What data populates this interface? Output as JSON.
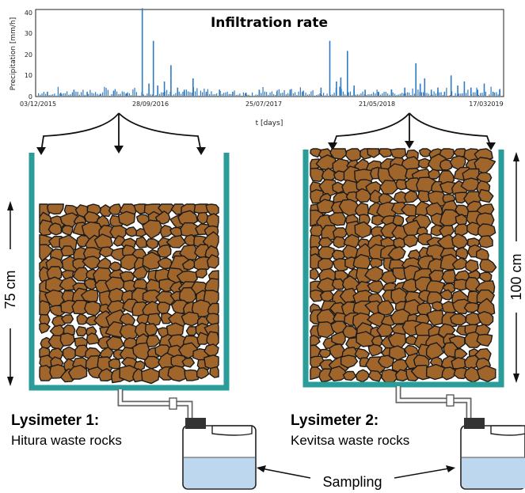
{
  "chart_data": {
    "type": "bar",
    "title": "Infiltration rate",
    "ylabel": "Precipitation [mm/h]",
    "xlabel": "t [days]",
    "ylim": [
      0,
      42
    ],
    "yticks": [
      "0",
      "10",
      "20",
      "30",
      "40"
    ],
    "xticks": [
      "03/12/2015",
      "28/09/2016",
      "25/07/2017",
      "21/05/2018",
      "17/032019"
    ],
    "color": "#2e7bc4",
    "series": [
      {
        "values": [
          [
            0.02,
            2
          ],
          [
            0.05,
            1.5
          ],
          [
            0.08,
            3
          ],
          [
            0.11,
            2
          ],
          [
            0.14,
            1
          ],
          [
            0.17,
            2.5
          ],
          [
            0.2,
            1.2
          ],
          [
            0.235,
            43
          ],
          [
            0.25,
            6
          ],
          [
            0.26,
            27
          ],
          [
            0.27,
            5
          ],
          [
            0.285,
            7
          ],
          [
            0.3,
            15
          ],
          [
            0.315,
            4
          ],
          [
            0.33,
            3
          ],
          [
            0.35,
            8.5
          ],
          [
            0.38,
            2
          ],
          [
            0.41,
            3
          ],
          [
            0.44,
            2
          ],
          [
            0.47,
            1.5
          ],
          [
            0.5,
            3
          ],
          [
            0.54,
            2
          ],
          [
            0.57,
            3
          ],
          [
            0.6,
            2.5
          ],
          [
            0.64,
            4
          ],
          [
            0.66,
            27
          ],
          [
            0.675,
            7
          ],
          [
            0.685,
            9
          ],
          [
            0.7,
            22
          ],
          [
            0.715,
            5
          ],
          [
            0.74,
            3
          ],
          [
            0.77,
            2
          ],
          [
            0.8,
            3
          ],
          [
            0.83,
            4
          ],
          [
            0.855,
            16
          ],
          [
            0.865,
            6
          ],
          [
            0.875,
            8.5
          ],
          [
            0.89,
            3
          ],
          [
            0.905,
            4
          ],
          [
            0.92,
            2
          ],
          [
            0.935,
            10
          ],
          [
            0.95,
            5
          ],
          [
            0.965,
            7
          ],
          [
            0.98,
            4
          ],
          [
            0.995,
            3
          ],
          [
            1.01,
            6
          ],
          [
            1.03,
            2
          ],
          [
            1.045,
            3
          ]
        ]
      }
    ]
  },
  "lysimeter1": {
    "title": "Lysimeter 1:",
    "subtitle": "Hitura waste rocks",
    "height_label": "75 cm"
  },
  "lysimeter2": {
    "title": "Lysimeter 2:",
    "subtitle": "Kevitsa waste rocks",
    "height_label": "100 cm"
  },
  "sampling_label": "Sampling",
  "colors": {
    "tank": "#2a9d9a",
    "rock": "#a0652b",
    "rock_outline": "#1a1a1a",
    "water": "#bcd7ee",
    "pipe": "#777777"
  }
}
